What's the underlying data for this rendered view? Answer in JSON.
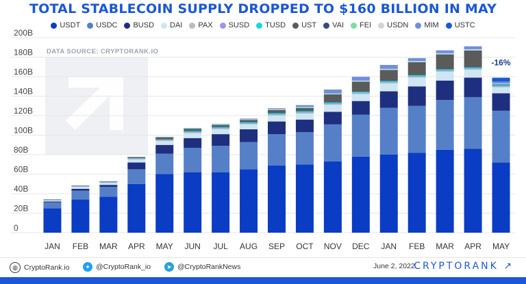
{
  "title": "TOTAL STABLECOIN SUPPLY DROPPED TO $160 BILLION IN MAY",
  "watermark": "DATA SOURCE: CRYPTORANK.IO",
  "colors": {
    "USDT": "#0a3dc4",
    "USDC": "#5580c8",
    "BUSD": "#1f2f80",
    "DAI": "#cfe6f2",
    "PAX": "#bcbcbc",
    "SUSD": "#a78ef0",
    "TUSD": "#16d5e6",
    "UST": "#5b5b5b",
    "VAI": "#374b77",
    "FEI": "#7bdca0",
    "USDN": "#d3d3d3",
    "MIM": "#6f8edc",
    "USTC": "#1b57d6"
  },
  "legend": [
    {
      "label": "USDT",
      "color": "#0a3dc4"
    },
    {
      "label": "USDC",
      "color": "#5580c8"
    },
    {
      "label": "BUSD",
      "color": "#1f2f80"
    },
    {
      "label": "DAI",
      "color": "#cfe6f2"
    },
    {
      "label": "PAX",
      "color": "#bcbcbc"
    },
    {
      "label": "SUSD",
      "color": "#a78ef0"
    },
    {
      "label": "TUSD",
      "color": "#16d5e6"
    },
    {
      "label": "UST",
      "color": "#5b5b5b"
    },
    {
      "label": "VAI",
      "color": "#374b77"
    },
    {
      "label": "FEI",
      "color": "#7bdca0"
    },
    {
      "label": "USDN",
      "color": "#d3d3d3"
    },
    {
      "label": "MIM",
      "color": "#6f8edc"
    },
    {
      "label": "USTC",
      "color": "#1b57d6"
    }
  ],
  "chart_data": {
    "type": "bar",
    "stacked": true,
    "categories": [
      "JAN",
      "FEB",
      "MAR",
      "APR",
      "MAY",
      "JUN",
      "JUL",
      "AUG",
      "SEP",
      "OCT",
      "NOV",
      "DEC",
      "JAN",
      "FEB",
      "MAR",
      "APR",
      "MAY"
    ],
    "ylim": [
      0,
      200
    ],
    "yticks": [
      "0",
      "20B",
      "40B",
      "60B",
      "80B",
      "100B",
      "120B",
      "140B",
      "160B",
      "180B",
      "200B"
    ],
    "series": [
      {
        "name": "USDT",
        "values": [
          25,
          34,
          37,
          50,
          60,
          62,
          62,
          65,
          69,
          70,
          73,
          78,
          80,
          82,
          85,
          86,
          72
        ]
      },
      {
        "name": "USDC",
        "values": [
          6,
          9,
          10,
          15,
          21,
          25,
          27,
          28,
          32,
          33,
          38,
          43,
          48,
          48,
          51,
          53,
          53
        ]
      },
      {
        "name": "BUSD",
        "values": [
          1,
          2,
          2,
          7,
          9,
          10,
          12,
          13,
          13,
          13,
          13,
          14,
          17,
          20,
          20,
          20,
          18
        ]
      },
      {
        "name": "DAI",
        "values": [
          1,
          2,
          2,
          3,
          4,
          5,
          5,
          5,
          6,
          6,
          7,
          7,
          8,
          9,
          9,
          8,
          6
        ]
      },
      {
        "name": "PAX",
        "values": [
          0.5,
          0.6,
          0.7,
          0.8,
          0.9,
          1,
          1,
          1,
          1,
          1,
          1,
          1,
          1,
          1,
          1,
          1,
          1
        ]
      },
      {
        "name": "SUSD",
        "values": [
          0.2,
          0.2,
          0.2,
          0.2,
          0.2,
          0.2,
          0.2,
          0.2,
          0.3,
          0.3,
          0.3,
          0.3,
          0.3,
          0.3,
          0.3,
          0.3,
          0.3
        ]
      },
      {
        "name": "TUSD",
        "values": [
          0.3,
          0.3,
          0.4,
          0.4,
          0.5,
          1,
          1,
          1,
          1.2,
          1.3,
          1.2,
          1.2,
          1.2,
          1.2,
          1.2,
          1.2,
          1.2
        ]
      },
      {
        "name": "UST",
        "values": [
          0.2,
          0.2,
          0.3,
          1,
          2,
          2,
          2,
          2,
          3,
          3,
          8,
          10,
          11,
          13,
          15,
          17,
          0.2
        ]
      },
      {
        "name": "VAI",
        "values": [
          0.1,
          0.1,
          0.1,
          0.2,
          0.2,
          0.2,
          0.2,
          0.2,
          0.2,
          0.2,
          0.2,
          0.2,
          0.2,
          0.2,
          0.2,
          0.2,
          0.2
        ]
      },
      {
        "name": "FEI",
        "values": [
          0,
          0,
          0,
          0.2,
          0.4,
          0.4,
          0.4,
          0.5,
          0.5,
          0.5,
          0.5,
          0.5,
          0.5,
          0.5,
          0.5,
          0.5,
          0.5
        ]
      },
      {
        "name": "USDN",
        "values": [
          0.1,
          0.2,
          0.2,
          0.2,
          0.3,
          0.3,
          0.3,
          0.3,
          0.4,
          0.5,
          0.6,
          0.7,
          0.8,
          0.8,
          0.8,
          0.9,
          0.5
        ]
      },
      {
        "name": "MIM",
        "values": [
          0,
          0,
          0,
          0,
          0,
          0.3,
          0.5,
          0.8,
          1,
          2,
          4,
          4,
          4,
          3,
          3,
          3,
          2
        ]
      },
      {
        "name": "USTC",
        "values": [
          0,
          0,
          0,
          0,
          0,
          0,
          0,
          0,
          0,
          0,
          0,
          0,
          0,
          0,
          0,
          0,
          4
        ]
      }
    ],
    "annotation": {
      "category_index": 16,
      "text": "-16%"
    }
  },
  "footer": {
    "site": "CryptoRank.io",
    "twitter": "@CryptoRank_io",
    "telegram": "@CryptoRankNews",
    "date": "June 2, 2022",
    "brand": "CRYPTORANK ↗"
  }
}
